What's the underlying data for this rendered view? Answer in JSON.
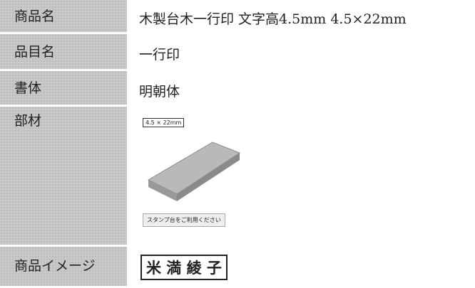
{
  "table": {
    "rows": [
      [
        "商品名",
        "木製台木一行印 文字高4.5mm 4.5×22mm"
      ],
      [
        "品目名",
        "一行印"
      ],
      [
        "書体",
        "明朝体"
      ]
    ]
  },
  "material": {
    "label": "部材",
    "size_label": "4.5 × 22mm",
    "note": "スタンプ台をご利用ください"
  },
  "preview": {
    "label": "商品イメージ",
    "sample": "米 満 綾 子"
  }
}
